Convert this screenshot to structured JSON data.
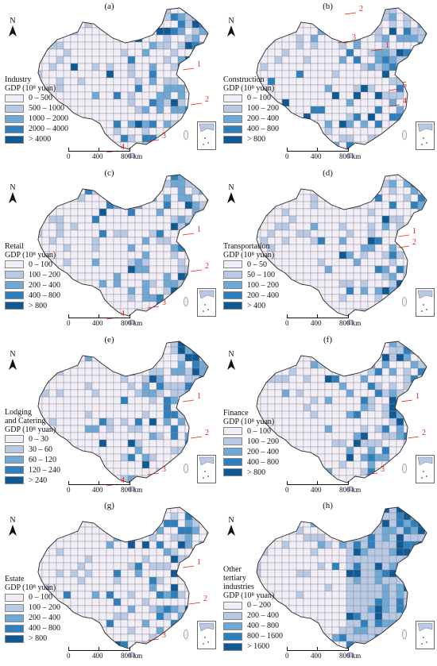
{
  "north_label": "N",
  "scale": {
    "labels": [
      "0",
      "400",
      "800 km"
    ]
  },
  "colors": {
    "c1": "#f1eef8",
    "c2": "#b8c9e6",
    "c3": "#6ea8d6",
    "c4": "#2d80bd",
    "c5": "#0f5a94",
    "border": "#8a8a8a",
    "marker": "#e0231b"
  },
  "panels": [
    {
      "label": "(a)",
      "legend_title": [
        "Industry",
        "GDP (10⁸ yuan)"
      ],
      "ranges": [
        "0 – 500",
        "500 – 1000",
        "1000 – 2000",
        "2000 – 4000",
        "> 4000"
      ],
      "markers": [
        "1",
        "2",
        "3",
        "4"
      ]
    },
    {
      "label": "(b)",
      "legend_title": [
        "Construction",
        "GDP (10⁸ yuan)"
      ],
      "ranges": [
        "0 – 100",
        "100 – 200",
        "200 – 400",
        "400 – 800",
        "> 800"
      ],
      "markers": [
        "1",
        "2",
        "3",
        "4",
        "5"
      ]
    },
    {
      "label": "(c)",
      "legend_title": [
        "Retail",
        "GDP (10⁸ yuan)"
      ],
      "ranges": [
        "0 – 100",
        "100 – 200",
        "200 – 400",
        "400 – 800",
        "> 800"
      ],
      "markers": [
        "1",
        "2",
        "3",
        "4"
      ]
    },
    {
      "label": "(d)",
      "legend_title": [
        "Transportation",
        "GDP (10⁸ yuan)"
      ],
      "ranges": [
        "0 – 50",
        "50 – 100",
        "100 – 200",
        "200 – 400",
        "> 400"
      ],
      "markers": [
        "1",
        "2"
      ]
    },
    {
      "label": "(e)",
      "legend_title": [
        "Lodging",
        "and Catering",
        "GDP (10⁸ yuan)"
      ],
      "ranges": [
        "0 – 30",
        "30 – 60",
        "60 – 120",
        "120 – 240",
        "> 240"
      ],
      "markers": [
        "1",
        "2",
        "3",
        "4"
      ]
    },
    {
      "label": "(f)",
      "legend_title": [
        "Finance",
        "GDP (10⁸ yuan)"
      ],
      "ranges": [
        "0 – 100",
        "100 – 200",
        "200 – 400",
        "400 – 800",
        "> 800"
      ],
      "markers": [
        "1",
        "2",
        "3"
      ]
    },
    {
      "label": "(g)",
      "legend_title": [
        "Estate",
        "GDP (10⁸ yuan)"
      ],
      "ranges": [
        "0 – 100",
        "100 – 200",
        "200 – 400",
        "400 – 800",
        "> 800"
      ],
      "markers": [
        "1",
        "2",
        "3"
      ]
    },
    {
      "label": "(h)",
      "legend_title": [
        "Other",
        "tertiary",
        "industries",
        "GDP (10⁸ yuan)"
      ],
      "ranges": [
        "0 – 200",
        "200 – 400",
        "400 – 800",
        "800 – 1600",
        "> 1600"
      ],
      "markers": []
    }
  ]
}
